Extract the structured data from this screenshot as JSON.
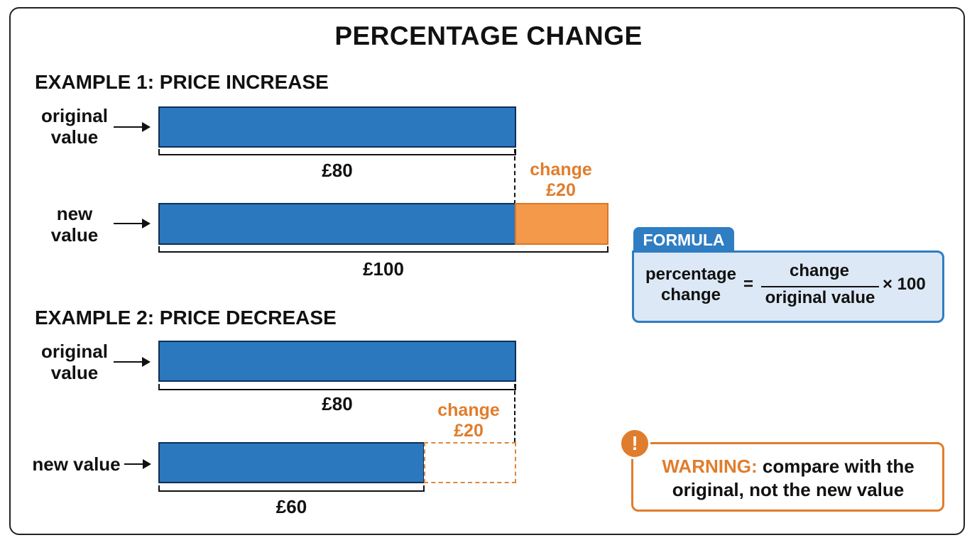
{
  "title": "PERCENTAGE CHANGE",
  "example1": {
    "heading": "EXAMPLE 1: PRICE INCREASE",
    "original_label_line1": "original",
    "original_label_line2": "value",
    "original_amount": "£80",
    "new_label_line1": "new",
    "new_label_line2": "value",
    "new_amount": "£100",
    "change_label": "change",
    "change_amount": "£20"
  },
  "example2": {
    "heading": "EXAMPLE 2: PRICE DECREASE",
    "original_label_line1": "original",
    "original_label_line2": "value",
    "original_amount": "£80",
    "new_label": "new value",
    "new_amount": "£60",
    "change_label": "change",
    "change_amount": "£20"
  },
  "formula": {
    "tab": "FORMULA",
    "left_line1": "percentage",
    "left_line2": "change",
    "equals": "=",
    "numerator": "change",
    "denominator": "original value",
    "multiplier": "× 100"
  },
  "warning": {
    "icon": "!",
    "label": "WARNING:",
    "text_line1": " compare with the",
    "text_line2": "original, not the new value"
  },
  "colors": {
    "bar_blue": "#2b78be",
    "change_orange": "#f4994a",
    "accent_orange": "#e07d2c",
    "formula_blue": "#2f7dc2"
  }
}
